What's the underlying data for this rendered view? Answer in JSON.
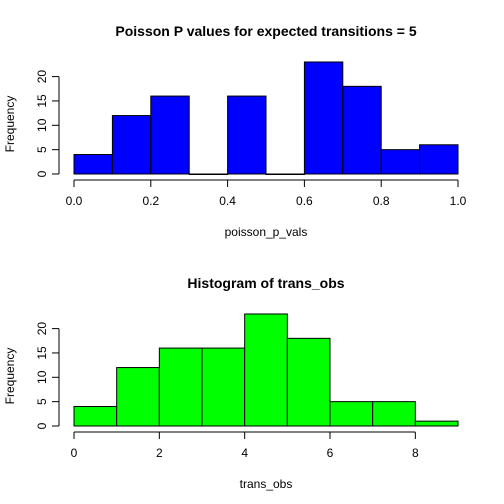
{
  "chart_data": [
    {
      "type": "bar",
      "title": "Poisson P values for expected transitions = 5",
      "xlabel": "poisson_p_vals",
      "ylabel": "Frequency",
      "bins": [
        [
          0.0,
          0.1
        ],
        [
          0.1,
          0.2
        ],
        [
          0.2,
          0.3
        ],
        [
          0.3,
          0.4
        ],
        [
          0.4,
          0.5
        ],
        [
          0.5,
          0.6
        ],
        [
          0.6,
          0.7
        ],
        [
          0.7,
          0.8
        ],
        [
          0.8,
          0.9
        ],
        [
          0.9,
          1.0
        ]
      ],
      "values": [
        4,
        12,
        16,
        0,
        16,
        0,
        23,
        18,
        5,
        6
      ],
      "x_ticks": [
        "0.0",
        "0.2",
        "0.4",
        "0.6",
        "0.8",
        "1.0"
      ],
      "y_ticks": [
        "0",
        "5",
        "10",
        "15",
        "20"
      ],
      "xlim": [
        0.0,
        1.0
      ],
      "ylim": [
        0,
        23
      ],
      "bar_color": "#0000ff",
      "grid": false
    },
    {
      "type": "bar",
      "title": "Histogram of trans_obs",
      "xlabel": "trans_obs",
      "ylabel": "Frequency",
      "bins": [
        [
          0,
          1
        ],
        [
          1,
          2
        ],
        [
          2,
          3
        ],
        [
          3,
          4
        ],
        [
          4,
          5
        ],
        [
          5,
          6
        ],
        [
          6,
          7
        ],
        [
          7,
          8
        ],
        [
          8,
          9
        ]
      ],
      "values": [
        4,
        12,
        16,
        16,
        23,
        18,
        5,
        5,
        1
      ],
      "x_ticks": [
        "0",
        "2",
        "4",
        "6",
        "8"
      ],
      "y_ticks": [
        "0",
        "5",
        "10",
        "15",
        "20"
      ],
      "xlim": [
        0,
        9
      ],
      "ylim": [
        0,
        23
      ],
      "bar_color": "#00ff00",
      "grid": false
    }
  ]
}
